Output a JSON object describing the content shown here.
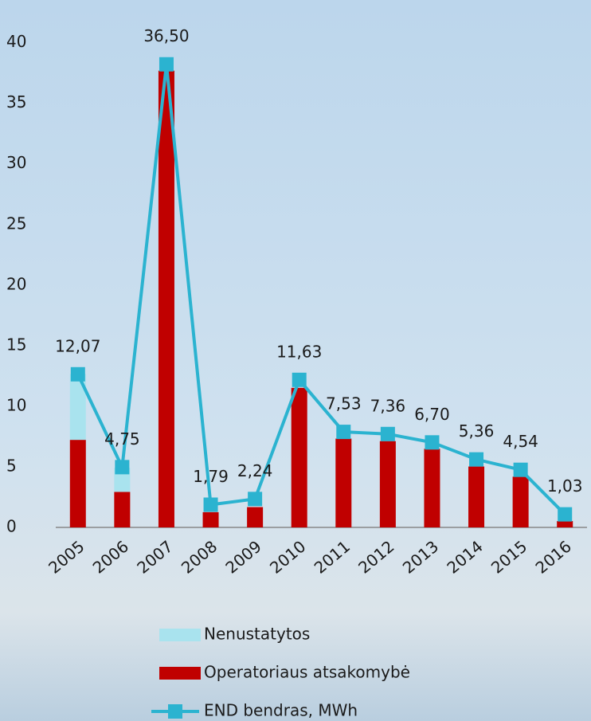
{
  "chart_data": {
    "type": "bar",
    "stacked": true,
    "categories": [
      "2005",
      "2006",
      "2007",
      "2008",
      "2009",
      "2010",
      "2011",
      "2012",
      "2013",
      "2014",
      "2015",
      "2016"
    ],
    "series": [
      {
        "name": "Nenustatytos",
        "type": "bar",
        "color": "#a9e3ee",
        "values": [
          5.2,
          1.9,
          0,
          0,
          0,
          0,
          0,
          0,
          0,
          0,
          0,
          0
        ]
      },
      {
        "name": "Operatoriaus atsakomybė",
        "type": "bar",
        "color": "#c00000",
        "values": [
          6.9,
          2.8,
          36,
          1.2,
          1.6,
          11,
          7,
          6.8,
          6.2,
          4.8,
          4,
          0.5
        ]
      },
      {
        "name": "END bendras, MWh",
        "type": "line",
        "color": "#2bb3d0",
        "values": [
          12.07,
          4.75,
          36.5,
          1.79,
          2.24,
          11.63,
          7.53,
          7.36,
          6.7,
          5.36,
          4.54,
          1.03
        ],
        "value_labels": [
          "12,07",
          "4,75",
          "36,50",
          "1,79",
          "2,24",
          "11,63",
          "7,53",
          "7,36",
          "6,70",
          "5,36",
          "4,54",
          "1,03"
        ]
      }
    ],
    "ylim": [
      0,
      40
    ],
    "yticks": [
      0,
      5,
      10,
      15,
      20,
      25,
      30,
      35,
      40
    ],
    "grid": false
  }
}
